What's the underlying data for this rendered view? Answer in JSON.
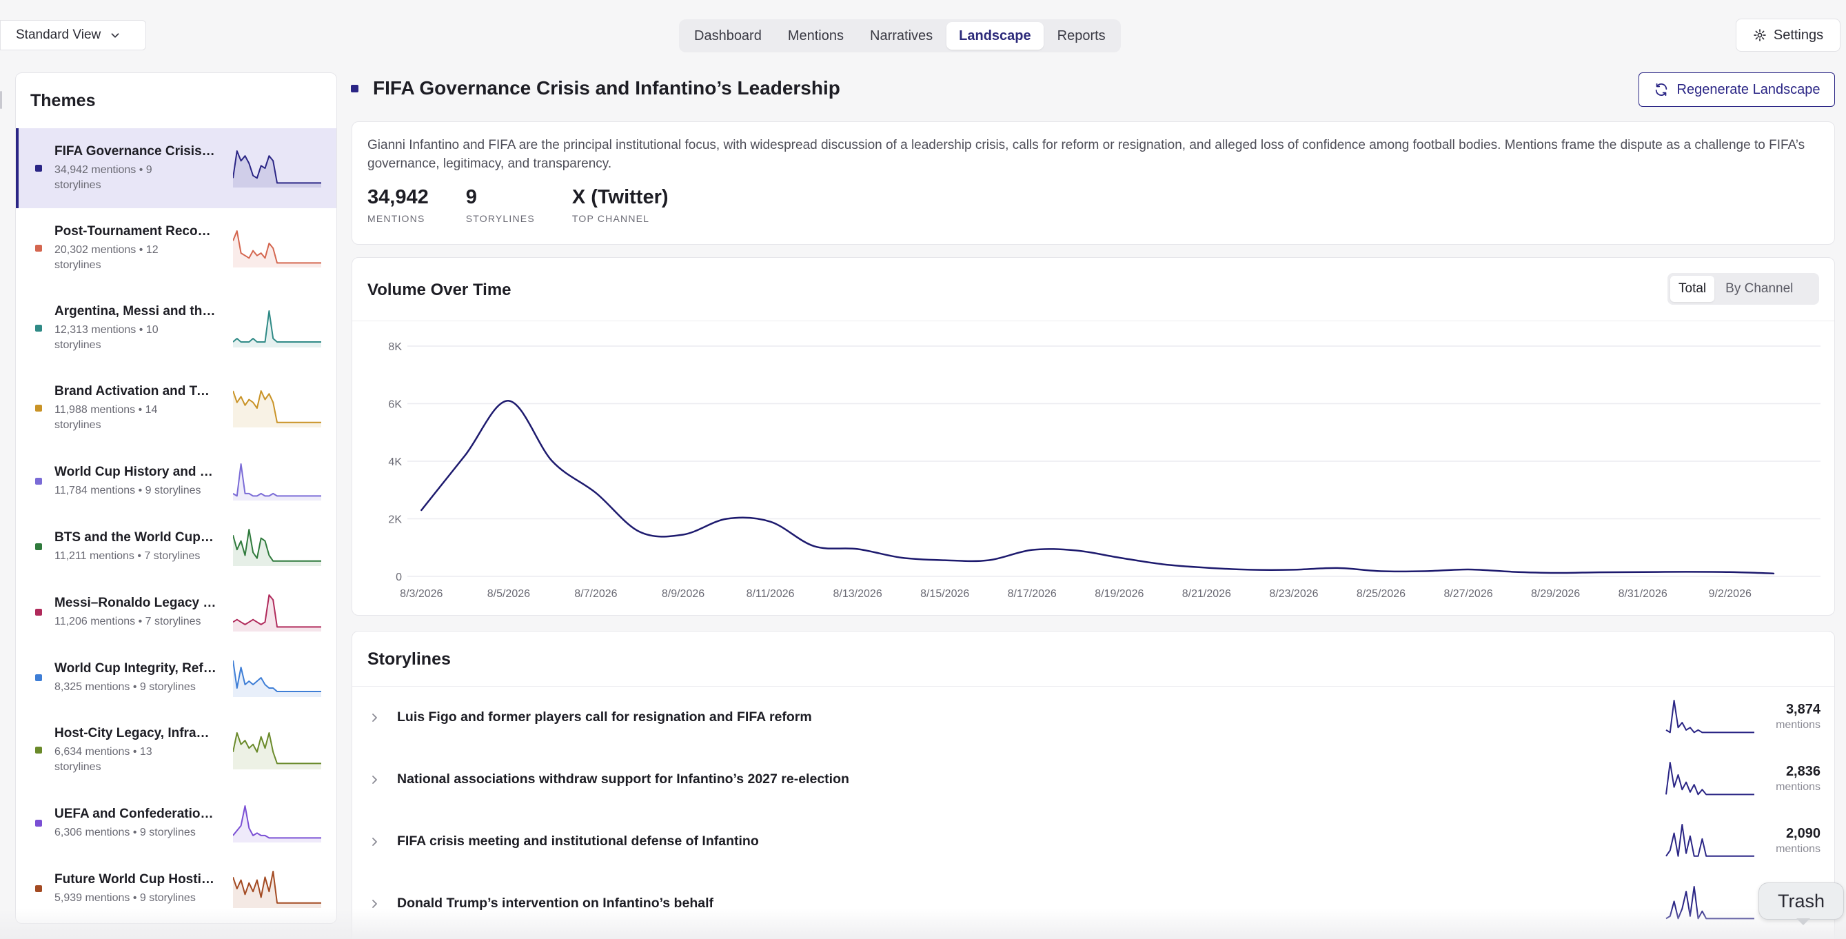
{
  "view_select": {
    "label": "Standard View"
  },
  "nav": {
    "tabs": [
      {
        "label": "Dashboard"
      },
      {
        "label": "Mentions"
      },
      {
        "label": "Narratives"
      },
      {
        "label": "Landscape",
        "active": true
      },
      {
        "label": "Reports"
      }
    ]
  },
  "settings": {
    "label": "Settings"
  },
  "themes": {
    "title": "Themes",
    "items": [
      {
        "name": "FIFA Governance Crisis and Infantino's Leadership",
        "meta_line1": "34,942 mentions • 9",
        "meta_line2": "storylines",
        "color": "#2a2585",
        "spark": [
          3,
          14,
          10,
          12,
          9,
          4,
          3,
          8,
          7,
          12,
          10,
          1,
          1,
          1,
          1,
          1,
          1,
          1,
          1,
          1,
          1,
          1,
          1
        ],
        "selected": true
      },
      {
        "name": "Post-Tournament Reconciliation",
        "meta_line1": "20,302 mentions • 12",
        "meta_line2": "storylines",
        "color": "#d4664f",
        "spark": [
          10,
          14,
          5,
          4,
          3,
          6,
          4,
          5,
          3,
          9,
          7,
          1,
          1,
          1,
          1,
          1,
          1,
          1,
          1,
          1,
          1,
          1,
          1
        ]
      },
      {
        "name": "Argentina, Messi and the Title Defense",
        "meta_line1": "12,313 mentions • 10",
        "meta_line2": "storylines",
        "color": "#2f8a86",
        "spark": [
          1,
          2,
          1,
          1,
          1,
          2,
          1,
          1,
          1,
          10,
          2,
          1,
          1,
          1,
          1,
          1,
          1,
          1,
          1,
          1,
          1,
          1,
          1
        ]
      },
      {
        "name": "Brand Activation and Tournament Sponsors",
        "meta_line1": "11,988 mentions • 14",
        "meta_line2": "storylines",
        "color": "#c99326",
        "spark": [
          12,
          8,
          10,
          7,
          9,
          8,
          6,
          12,
          9,
          11,
          8,
          1,
          1,
          1,
          1,
          1,
          1,
          1,
          1,
          1,
          1,
          1,
          1
        ]
      },
      {
        "name": "World Cup History and Heritage",
        "meta_line1": "11,784 mentions • 9 storylines",
        "color": "#7a6bd6",
        "spark": [
          2,
          1,
          14,
          2,
          2,
          1,
          1,
          2,
          1,
          1,
          2,
          1,
          1,
          1,
          1,
          1,
          1,
          1,
          1,
          1,
          1,
          1,
          1
        ],
        "short": true
      },
      {
        "name": "BTS and the World Cup Anthem",
        "meta_line1": "11,211 mentions • 7 storylines",
        "color": "#2f7a3c",
        "spark": [
          10,
          5,
          8,
          3,
          12,
          4,
          2,
          9,
          8,
          3,
          1,
          1,
          1,
          1,
          1,
          1,
          1,
          1,
          1,
          1,
          1,
          1,
          1
        ],
        "short": true
      },
      {
        "name": "Messi–Ronaldo Legacy Debate",
        "meta_line1": "11,206 mentions • 7 storylines",
        "color": "#b02a5b",
        "spark": [
          3,
          4,
          3,
          2,
          3,
          4,
          3,
          2,
          3,
          14,
          12,
          1,
          1,
          1,
          1,
          1,
          1,
          1,
          1,
          1,
          1,
          1,
          1
        ],
        "short": true
      },
      {
        "name": "World Cup Integrity, Refereeing and VAR",
        "meta_line1": "8,325 mentions • 9 storylines",
        "color": "#3e7ed6",
        "spark": [
          10,
          2,
          8,
          3,
          4,
          3,
          4,
          5,
          3,
          2,
          2,
          1,
          1,
          1,
          1,
          1,
          1,
          1,
          1,
          1,
          1,
          1,
          1
        ],
        "short": true
      },
      {
        "name": "Host-City Legacy, Infrastructure and Costs",
        "meta_line1": "6,634 mentions • 13",
        "meta_line2": "storylines",
        "color": "#6a8a2a",
        "spark": [
          4,
          9,
          6,
          7,
          5,
          6,
          4,
          8,
          5,
          9,
          4,
          1,
          1,
          1,
          1,
          1,
          1,
          1,
          1,
          1,
          1,
          1,
          1
        ]
      },
      {
        "name": "UEFA and Confederation Responses",
        "meta_line1": "6,306 mentions • 9 storylines",
        "color": "#7a4fd4",
        "spark": [
          2,
          4,
          6,
          14,
          5,
          2,
          3,
          2,
          2,
          1,
          1,
          1,
          1,
          1,
          1,
          1,
          1,
          1,
          1,
          1,
          1,
          1,
          1
        ],
        "short": true
      },
      {
        "name": "Future World Cup Hosting Bids",
        "meta_line1": "5,939 mentions • 9 storylines",
        "color": "#a34a22",
        "spark": [
          10,
          6,
          9,
          4,
          8,
          5,
          9,
          3,
          10,
          5,
          12,
          1,
          1,
          1,
          1,
          1,
          1,
          1,
          1,
          1,
          1,
          1,
          1
        ],
        "short": true
      }
    ]
  },
  "main": {
    "title": "FIFA Governance Crisis and Infantino’s Leadership",
    "accent": "#2a2585",
    "regenerate_label": "Regenerate Landscape",
    "description": "Gianni Infantino and FIFA are the principal institutional focus, with widespread discussion of a leadership crisis, calls for reform or resignation, and alleged loss of confidence among football bodies. Mentions frame the dispute as a challenge to FIFA’s governance, legitimacy, and transparency.",
    "stats": [
      {
        "value": "34,942",
        "label": "MENTIONS"
      },
      {
        "value": "9",
        "label": "STORYLINES"
      },
      {
        "value": "X (Twitter)",
        "label": "TOP CHANNEL"
      }
    ]
  },
  "volume": {
    "title": "Volume Over Time",
    "toggle": {
      "total": "Total",
      "by_channel": "By Channel"
    }
  },
  "chart_data": {
    "type": "line",
    "title": "Volume Over Time",
    "x": [
      "8/3/2026",
      "8/4/2026",
      "8/5/2026",
      "8/6/2026",
      "8/7/2026",
      "8/8/2026",
      "8/9/2026",
      "8/10/2026",
      "8/11/2026",
      "8/12/2026",
      "8/13/2026",
      "8/14/2026",
      "8/15/2026",
      "8/16/2026",
      "8/17/2026",
      "8/18/2026",
      "8/19/2026",
      "8/20/2026",
      "8/21/2026",
      "8/22/2026",
      "8/23/2026",
      "8/24/2026",
      "8/25/2026",
      "8/26/2026",
      "8/27/2026",
      "8/28/2026",
      "8/29/2026",
      "8/30/2026",
      "8/31/2026",
      "9/1/2026",
      "9/2/2026",
      "9/3/2026"
    ],
    "x_tick_labels": [
      "8/3/2026",
      "8/5/2026",
      "8/7/2026",
      "8/9/2026",
      "8/11/2026",
      "8/13/2026",
      "8/15/2026",
      "8/17/2026",
      "8/19/2026",
      "8/21/2026",
      "8/23/2026",
      "8/25/2026",
      "8/27/2026",
      "8/29/2026",
      "8/31/2026",
      "9/2/2026"
    ],
    "series": [
      {
        "values": [
          2300,
          4200,
          6100,
          4000,
          2900,
          1550,
          1450,
          2000,
          1900,
          1050,
          950,
          650,
          560,
          560,
          920,
          900,
          650,
          420,
          300,
          230,
          230,
          290,
          180,
          180,
          240,
          160,
          120,
          140,
          150,
          160,
          150,
          100
        ],
        "color": "#1d1a6e"
      }
    ],
    "ylim": [
      0,
      8000
    ],
    "y_ticks": [
      {
        "value": 0,
        "label": "0"
      },
      {
        "value": 2000,
        "label": "2K"
      },
      {
        "value": 4000,
        "label": "4K"
      },
      {
        "value": 6000,
        "label": "6K"
      },
      {
        "value": 8000,
        "label": "8K"
      }
    ],
    "grid": true
  },
  "storylines": {
    "title": "Storylines",
    "mentions_unit": "mentions",
    "items": [
      {
        "label": "Luis Figo and former players call for resignation and FIFA reform",
        "count": "3,874",
        "spark": [
          2,
          1,
          14,
          3,
          5,
          2,
          3,
          1,
          2,
          1,
          1,
          1,
          1,
          1,
          1,
          1,
          1,
          1,
          1,
          1,
          1,
          1,
          1
        ]
      },
      {
        "label": "National associations withdraw support for Infantino’s 2027 re-election",
        "count": "2,836",
        "spark": [
          1,
          14,
          4,
          9,
          3,
          6,
          2,
          5,
          1,
          3,
          1,
          1,
          1,
          1,
          1,
          1,
          1,
          1,
          1,
          1,
          1,
          1,
          1
        ]
      },
      {
        "label": "FIFA crisis meeting and institutional defense of Infantino",
        "count": "2,090",
        "spark": [
          1,
          3,
          9,
          1,
          12,
          2,
          8,
          1,
          1,
          7,
          1,
          1,
          1,
          1,
          1,
          1,
          1,
          1,
          1,
          1,
          1,
          1,
          1
        ]
      },
      {
        "label": "Donald Trump’s intervention on Infantino’s behalf",
        "count": "",
        "spark": [
          1,
          2,
          8,
          1,
          5,
          12,
          2,
          14,
          1,
          4,
          1,
          1,
          1,
          1,
          1,
          1,
          1,
          1,
          1,
          1,
          1,
          1,
          1
        ]
      }
    ]
  },
  "trash": {
    "label": "Trash"
  }
}
